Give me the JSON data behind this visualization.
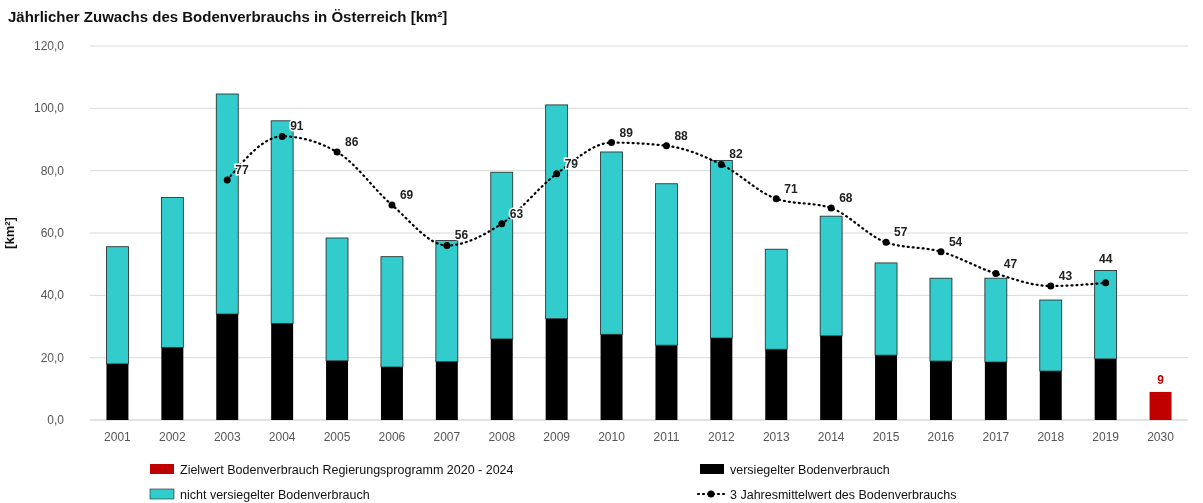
{
  "chart_data": {
    "type": "bar",
    "title": "Jährlicher Zuwachs des Bodenverbrauchs in Österreich [km²]",
    "ylabel": "[km²]",
    "categories": [
      "2001",
      "2002",
      "2003",
      "2004",
      "2005",
      "2006",
      "2007",
      "2008",
      "2009",
      "2010",
      "2011",
      "2012",
      "2013",
      "2014",
      "2015",
      "2016",
      "2017",
      "2018",
      "2019",
      "2030"
    ],
    "stacked": true,
    "grid": "y",
    "legend": "bottom",
    "ylim": [
      0,
      120
    ],
    "yticks": [
      {
        "value": 0,
        "label": "0,0"
      },
      {
        "value": 20,
        "label": "20,0"
      },
      {
        "value": 40,
        "label": "40,0"
      },
      {
        "value": 60,
        "label": "60,0"
      },
      {
        "value": 80,
        "label": "80,0"
      },
      {
        "value": 100,
        "label": "100,0"
      },
      {
        "value": 120,
        "label": "120,0"
      }
    ],
    "series": [
      {
        "name": "Zielwert Bodenverbrauch Regierungsprogramm 2020 - 2024",
        "color": "#c00000",
        "values": [
          null,
          null,
          null,
          null,
          null,
          null,
          null,
          null,
          null,
          null,
          null,
          null,
          null,
          null,
          null,
          null,
          null,
          null,
          null,
          9
        ],
        "value_labels": [
          null,
          null,
          null,
          null,
          null,
          null,
          null,
          null,
          null,
          null,
          null,
          null,
          null,
          null,
          null,
          null,
          null,
          null,
          null,
          "9"
        ]
      },
      {
        "name": "versiegelter Bodenverbrauch",
        "color": "#000000",
        "values": [
          18,
          23.3,
          34,
          31,
          19,
          17,
          18.7,
          26,
          32.5,
          27.5,
          24,
          26.3,
          22.7,
          27,
          20.8,
          18.9,
          18.6,
          15.7,
          19.6,
          null
        ]
      },
      {
        "name": "nicht versiegelter Bodenverbrauch",
        "color": "#33cccc",
        "values": [
          37.6,
          48.1,
          70.6,
          65,
          39.4,
          35.4,
          38.9,
          53.5,
          68.6,
          58.5,
          51.8,
          57,
          32.1,
          38.4,
          29.6,
          26.6,
          26.9,
          22.8,
          28.4,
          null
        ]
      },
      {
        "name": "3 Jahresmittelwert des Bodenverbrauchs",
        "type": "line",
        "color": "#000000",
        "marker": "circle",
        "line_style": "dotted",
        "values": [
          null,
          null,
          77,
          91,
          86,
          69,
          56,
          63,
          79,
          89,
          88,
          82,
          71,
          68,
          57,
          54,
          47,
          43,
          44,
          null
        ],
        "value_labels": [
          null,
          null,
          "77",
          "91",
          "86",
          "69",
          "56",
          "63",
          "79",
          "89",
          "88",
          "82",
          "71",
          "68",
          "57",
          "54",
          "47",
          "43",
          "44",
          null
        ]
      }
    ]
  }
}
